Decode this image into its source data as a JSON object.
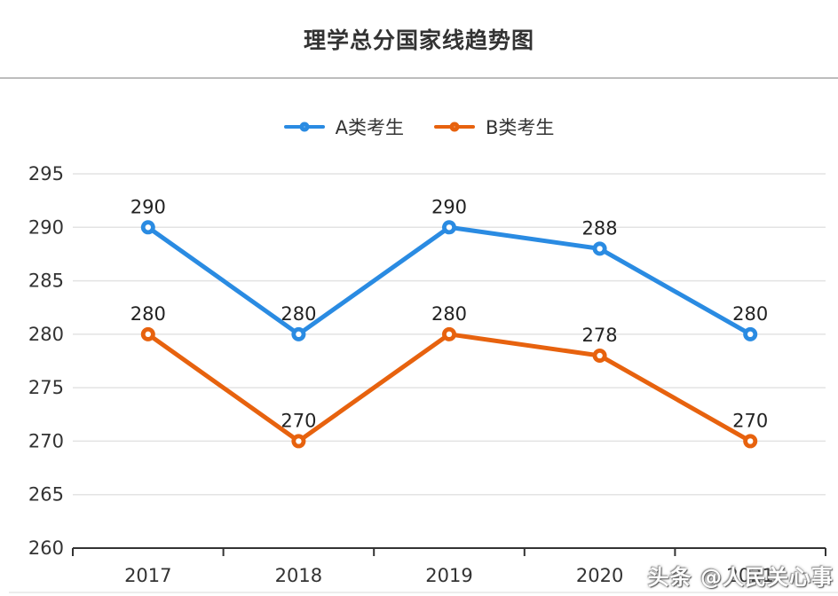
{
  "title": "理学总分国家线趋势图",
  "watermark": "头条 @人民关心事",
  "legend": {
    "items": [
      {
        "label": "A类考生",
        "color": "#2A8BE2"
      },
      {
        "label": "B类考生",
        "color": "#E7620E"
      }
    ]
  },
  "colors": {
    "series_a": "#2A8BE2",
    "series_b": "#E7620E",
    "axis": "#333333",
    "grid": "#e3e3e3",
    "label": "#222222",
    "tick_text": "#333333"
  },
  "chart_data": {
    "type": "line",
    "title": "理学总分国家线趋势图",
    "categories": [
      "2017",
      "2018",
      "2019",
      "2020",
      "2021"
    ],
    "series": [
      {
        "name": "A类考生",
        "color": "#2A8BE2",
        "values": [
          290,
          280,
          290,
          288,
          280
        ]
      },
      {
        "name": "B类考生",
        "color": "#E7620E",
        "values": [
          280,
          270,
          280,
          278,
          270
        ]
      }
    ],
    "xlabel": "",
    "ylabel": "",
    "ylim": [
      260,
      295
    ],
    "ytick_step": 5,
    "grid": true,
    "legend_position": "top",
    "marker": "circle-donut",
    "data_labels": true
  }
}
